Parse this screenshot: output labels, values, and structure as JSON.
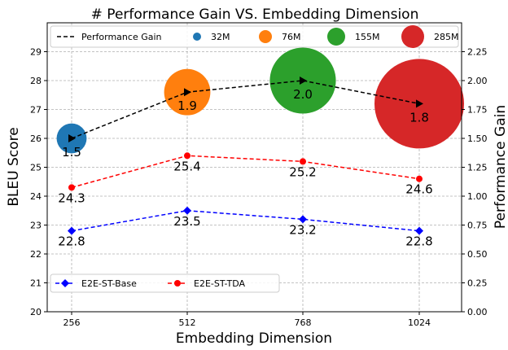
{
  "chart_data": {
    "title": "# Performance Gain VS. Embedding Dimension",
    "xlabel": "Embedding Dimension",
    "ylabel_left": "BLEU Score",
    "ylabel_right": "Performance Gain",
    "categories": [
      "256",
      "512",
      "768",
      "1024"
    ],
    "ylim_left": [
      20,
      30
    ],
    "yticks_left": [
      "20",
      "21",
      "22",
      "23",
      "24",
      "25",
      "26",
      "27",
      "28",
      "29"
    ],
    "ylim_right": [
      0,
      2.5
    ],
    "yticks_right": [
      "0.00",
      "0.25",
      "0.50",
      "0.75",
      "1.00",
      "1.25",
      "1.50",
      "1.75",
      "2.00",
      "2.25"
    ],
    "grid": true,
    "series": [
      {
        "name": "E2E-ST-Base",
        "axis": "left",
        "type": "line",
        "marker": "diamond",
        "color": "#0000ff",
        "dash": true,
        "values": [
          22.8,
          23.5,
          23.2,
          22.8
        ],
        "labels": [
          "22.8",
          "23.5",
          "23.2",
          "22.8"
        ]
      },
      {
        "name": "E2E-ST-TDA",
        "axis": "left",
        "type": "line",
        "marker": "circle",
        "color": "#ff0000",
        "dash": true,
        "values": [
          24.3,
          25.4,
          25.2,
          24.6
        ],
        "labels": [
          "24.3",
          "25.4",
          "25.2",
          "24.6"
        ]
      },
      {
        "name": "Performance Gain",
        "axis": "right",
        "type": "line",
        "marker": "triangle-right",
        "color": "#000000",
        "dash": true,
        "values": [
          1.5,
          1.9,
          2.0,
          1.8
        ],
        "labels": [
          "1.5",
          "1.9",
          "2.0",
          "1.8"
        ]
      }
    ],
    "bubbles": {
      "axis": "left",
      "items": [
        {
          "label": "32M",
          "params_millions": 32,
          "y": 26.0,
          "color": "#1f77b4"
        },
        {
          "label": "76M",
          "params_millions": 76,
          "y": 27.6,
          "color": "#ff7f0e"
        },
        {
          "label": "155M",
          "params_millions": 155,
          "y": 28.0,
          "color": "#2ca02c"
        },
        {
          "label": "285M",
          "params_millions": 285,
          "y": 27.2,
          "color": "#d62728"
        }
      ]
    },
    "legend_top": {
      "placement": "top",
      "entries": [
        "Performance Gain",
        "32M",
        "76M",
        "155M",
        "285M"
      ]
    },
    "legend_bottom": {
      "placement": "lower-left",
      "entries": [
        "E2E-ST-Base",
        "E2E-ST-TDA"
      ]
    }
  }
}
